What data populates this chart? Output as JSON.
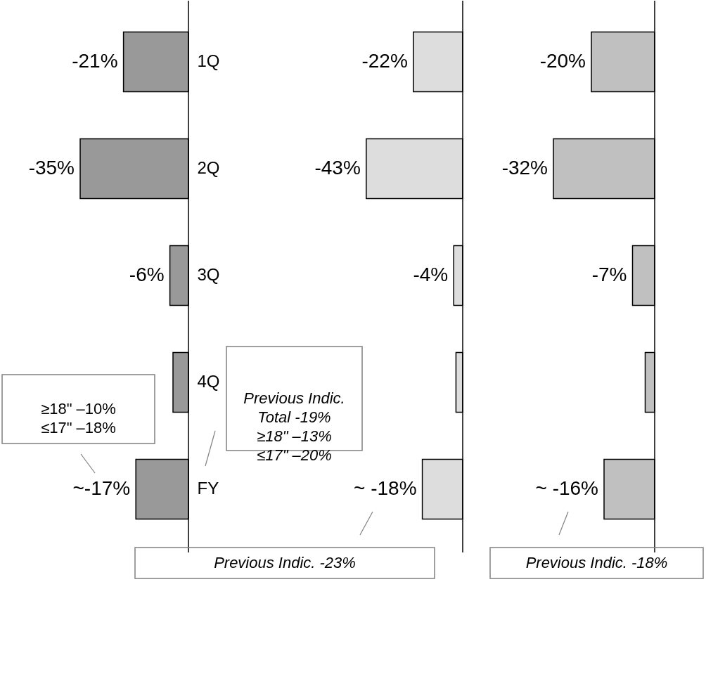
{
  "chart_data": [
    {
      "type": "bar",
      "orientation": "horizontal",
      "categories": [
        "1Q",
        "2Q",
        "3Q",
        "4Q",
        "FY"
      ],
      "values": [
        -21,
        -35,
        -6,
        -5,
        -17
      ],
      "value_labels": [
        "-21%",
        "-35%",
        "-6%",
        null,
        "~-17%"
      ],
      "color": "#999999",
      "tick_labels": "y",
      "grid": false,
      "annotations": [
        "≥18\" –10%\n≤17\" –18%",
        "Previous Indic.\nTotal -19%\n≥18\" –13%\n≤17\" –20%"
      ]
    },
    {
      "type": "bar",
      "orientation": "horizontal",
      "categories": [
        null,
        null,
        null,
        null,
        null
      ],
      "values": [
        -22,
        -43,
        -4,
        -3,
        -18
      ],
      "value_labels": [
        "-22%",
        "-43%",
        "-4%",
        null,
        "~ -18%"
      ],
      "color": "#dddddd",
      "tick_labels": false,
      "grid": false,
      "annotations": [
        "Previous Indic. -23%"
      ]
    },
    {
      "type": "bar",
      "orientation": "horizontal",
      "categories": [
        null,
        null,
        null,
        null,
        null
      ],
      "values": [
        -20,
        -32,
        -7,
        -3,
        -16
      ],
      "value_labels": [
        "-20%",
        "-32%",
        "-7%",
        null,
        "~ -16%"
      ],
      "color": "#c0c0c0",
      "tick_labels": false,
      "grid": false,
      "annotations": [
        "Previous Indic. -18%"
      ]
    }
  ]
}
